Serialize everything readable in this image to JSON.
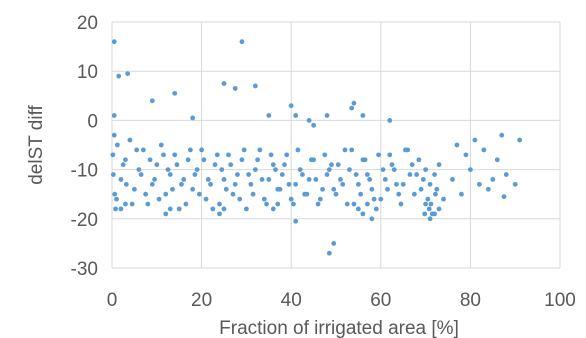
{
  "chart_data": {
    "type": "scatter",
    "xlabel": "Fraction of irrigated area [%]",
    "ylabel": "delST diff",
    "xlim": [
      0,
      100
    ],
    "ylim": [
      -30,
      20
    ],
    "x_ticks": [
      "0",
      "20",
      "40",
      "60",
      "80",
      "100"
    ],
    "y_ticks": [
      "20",
      "10",
      "0",
      "-10",
      "-20",
      "-30"
    ],
    "x_tick_values": [
      0,
      20,
      40,
      60,
      80,
      100
    ],
    "y_tick_values": [
      20,
      10,
      0,
      -10,
      -20,
      -30
    ],
    "grid": "both",
    "legend": "none",
    "marker_color": "#5b9bd5",
    "series": [
      {
        "points": [
          [
            0.5,
            16
          ],
          [
            1.5,
            9
          ],
          [
            3.5,
            9.5
          ],
          [
            29,
            16
          ],
          [
            25,
            7.5
          ],
          [
            27.5,
            6.5
          ],
          [
            32,
            7
          ],
          [
            14,
            5.5
          ],
          [
            9,
            4
          ],
          [
            0.5,
            1
          ],
          [
            40,
            3
          ],
          [
            41,
            1
          ],
          [
            54,
            3.5
          ],
          [
            53.5,
            2.5
          ],
          [
            56,
            1
          ],
          [
            62,
            0
          ],
          [
            48,
            1
          ],
          [
            35,
            1
          ],
          [
            18,
            0.5
          ],
          [
            44,
            0
          ],
          [
            45,
            -1
          ],
          [
            41,
            -20.5
          ],
          [
            49.5,
            -25
          ],
          [
            48.5,
            -27
          ],
          [
            87,
            -3
          ],
          [
            91,
            -4
          ],
          [
            86,
            -8
          ],
          [
            83,
            -6
          ],
          [
            81,
            -4
          ],
          [
            79,
            -7
          ],
          [
            77,
            -5
          ],
          [
            85,
            -12
          ],
          [
            87.5,
            -15.5
          ],
          [
            90,
            -13
          ],
          [
            88,
            -11
          ],
          [
            84,
            -14
          ],
          [
            80,
            -10
          ],
          [
            82,
            -13
          ],
          [
            78,
            -15
          ],
          [
            76,
            -12
          ],
          [
            74,
            -16
          ],
          [
            73,
            -18
          ],
          [
            72,
            -19
          ],
          [
            71,
            -20
          ],
          [
            70,
            -17
          ],
          [
            69,
            -14
          ],
          [
            68,
            -11
          ],
          [
            67,
            -9
          ],
          [
            66,
            -6
          ],
          [
            65,
            -13
          ],
          [
            64,
            -15
          ],
          [
            63,
            -10
          ],
          [
            62,
            -7
          ],
          [
            61,
            -12
          ],
          [
            60,
            -16
          ],
          [
            59,
            -18
          ],
          [
            58,
            -14
          ],
          [
            57,
            -11
          ],
          [
            56,
            -8
          ],
          [
            55,
            -13
          ],
          [
            54,
            -17
          ],
          [
            53,
            -10
          ],
          [
            52,
            -6
          ],
          [
            51,
            -12
          ],
          [
            50,
            -15
          ],
          [
            49,
            -9
          ],
          [
            48,
            -11
          ],
          [
            47,
            -14
          ],
          [
            46,
            -17
          ],
          [
            45,
            -8
          ],
          [
            44,
            -12
          ],
          [
            43,
            -15
          ],
          [
            42,
            -10
          ],
          [
            41,
            -13
          ],
          [
            40,
            -16
          ],
          [
            39,
            -7
          ],
          [
            38,
            -11
          ],
          [
            37,
            -14
          ],
          [
            36,
            -9
          ],
          [
            35,
            -12
          ],
          [
            34,
            -16
          ],
          [
            33,
            -6
          ],
          [
            32,
            -10
          ],
          [
            31,
            -13
          ],
          [
            30,
            -18
          ],
          [
            29,
            -8
          ],
          [
            28,
            -11
          ],
          [
            27,
            -15
          ],
          [
            26,
            -7
          ],
          [
            25,
            -12
          ],
          [
            24,
            -17
          ],
          [
            23,
            -9
          ],
          [
            22,
            -13
          ],
          [
            21,
            -16
          ],
          [
            20,
            -6
          ],
          [
            19,
            -10
          ],
          [
            18,
            -14
          ],
          [
            17,
            -8
          ],
          [
            16,
            -12
          ],
          [
            15,
            -18
          ],
          [
            14,
            -7
          ],
          [
            13,
            -11
          ],
          [
            12,
            -15
          ],
          [
            11,
            -5
          ],
          [
            10,
            -9
          ],
          [
            9,
            -13
          ],
          [
            8,
            -17
          ],
          [
            7,
            -6
          ],
          [
            6,
            -10
          ],
          [
            5,
            -14
          ],
          [
            4,
            -4
          ],
          [
            3,
            -8
          ],
          [
            2,
            -12
          ],
          [
            1,
            -16
          ],
          [
            0.5,
            -3
          ],
          [
            0.2,
            -7
          ],
          [
            0.3,
            -11
          ],
          [
            0.6,
            -15
          ],
          [
            0.8,
            -18
          ],
          [
            1.2,
            -5
          ],
          [
            2.5,
            -9
          ],
          [
            3.2,
            -13
          ],
          [
            4.5,
            -17
          ],
          [
            5.5,
            -6
          ],
          [
            6.5,
            -11
          ],
          [
            7.5,
            -15
          ],
          [
            8.5,
            -8
          ],
          [
            9.5,
            -12
          ],
          [
            10.5,
            -16
          ],
          [
            11.5,
            -7
          ],
          [
            12.5,
            -10
          ],
          [
            13.5,
            -14
          ],
          [
            14.5,
            -9
          ],
          [
            15.5,
            -13
          ],
          [
            16.5,
            -17
          ],
          [
            17.5,
            -6
          ],
          [
            18.5,
            -11
          ],
          [
            19.5,
            -15
          ],
          [
            20.5,
            -8
          ],
          [
            21.5,
            -12
          ],
          [
            22.5,
            -18
          ],
          [
            23.5,
            -7
          ],
          [
            24.5,
            -10
          ],
          [
            25.5,
            -14
          ],
          [
            26.5,
            -9
          ],
          [
            27.5,
            -13
          ],
          [
            28.5,
            -16
          ],
          [
            29.5,
            -6
          ],
          [
            30.5,
            -11
          ],
          [
            31.5,
            -15
          ],
          [
            32.5,
            -8
          ],
          [
            33.5,
            -12
          ],
          [
            34.5,
            -17
          ],
          [
            35.5,
            -7
          ],
          [
            36.5,
            -10
          ],
          [
            37.5,
            -14
          ],
          [
            38.5,
            -9
          ],
          [
            39.5,
            -13
          ],
          [
            40.5,
            -17
          ],
          [
            41.5,
            -6
          ],
          [
            42.5,
            -11
          ],
          [
            43.5,
            -15
          ],
          [
            44.5,
            -8
          ],
          [
            45.5,
            -12
          ],
          [
            46.5,
            -16
          ],
          [
            47.5,
            -7
          ],
          [
            48.5,
            -10
          ],
          [
            49.5,
            -14
          ],
          [
            50.5,
            -9
          ],
          [
            51.5,
            -13
          ],
          [
            52.5,
            -17
          ],
          [
            53.5,
            -6
          ],
          [
            54.5,
            -11
          ],
          [
            55.5,
            -15
          ],
          [
            56.5,
            -8
          ],
          [
            57.5,
            -12
          ],
          [
            58.5,
            -16
          ],
          [
            59.5,
            -7
          ],
          [
            60.5,
            -10
          ],
          [
            61.5,
            -14
          ],
          [
            62.5,
            -9
          ],
          [
            63.5,
            -13
          ],
          [
            64.5,
            -17
          ],
          [
            65.5,
            -6
          ],
          [
            66.5,
            -11
          ],
          [
            67.5,
            -15
          ],
          [
            68.5,
            -8
          ],
          [
            69.5,
            -12
          ],
          [
            70.5,
            -16
          ],
          [
            71.5,
            -19
          ],
          [
            72.5,
            -14
          ],
          [
            70,
            -10
          ],
          [
            71,
            -13
          ],
          [
            72,
            -11
          ],
          [
            73,
            -9
          ],
          [
            70.8,
            -18
          ],
          [
            71.2,
            -17
          ],
          [
            72.2,
            -15
          ],
          [
            69.8,
            -19
          ],
          [
            55,
            -18
          ],
          [
            56,
            -19
          ],
          [
            57,
            -17
          ],
          [
            58,
            -20
          ],
          [
            36,
            -18
          ],
          [
            37,
            -17
          ],
          [
            2,
            -18
          ],
          [
            3,
            -17
          ],
          [
            24,
            -19
          ],
          [
            25,
            -18
          ],
          [
            12,
            -19
          ],
          [
            13,
            -18
          ]
        ]
      }
    ]
  }
}
